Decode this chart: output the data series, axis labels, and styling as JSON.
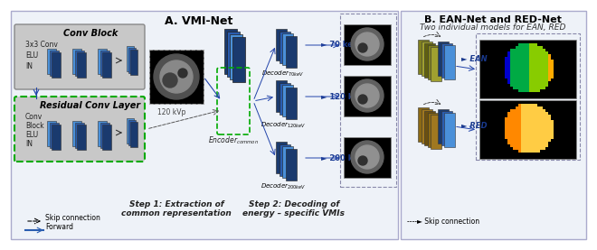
{
  "title_A": "A. VMI-Net",
  "title_B": "B. EAN-Net and RED-Net",
  "subtitle_B": "Two individual models for EAN, RED",
  "conv_block_label": "Conv Block",
  "residual_label": "Residual Conv Layer",
  "conv_block_items": [
    "3x3 Conv",
    "ELU",
    "IN"
  ],
  "residual_items": [
    "Conv",
    "Block",
    "ELU",
    "IN"
  ],
  "encoder_label": "Encoder_common",
  "decoder_labels": [
    "Decoder_70keV",
    "Decoder_120keV",
    "Decoder_200keV"
  ],
  "kev_labels": [
    "► 70 keV",
    "► 120 keV",
    "► 200 keV"
  ],
  "kev_input": "120 kVp",
  "ean_label": "► EAN",
  "red_label": "► RED",
  "legend_skip": "----► Skip connection",
  "legend_forward": "—► Forward",
  "legend_skip_B": "----► Skip connection",
  "step1_label": "Step 1: Extraction of\ncommon representation",
  "step2_label": "Step 2: Decoding of\nenergy – specific VMIs",
  "bg_color": "#f0f4f8",
  "box_gray": "#d0d0d0",
  "box_green_border": "#00aa00",
  "blue_dark": "#1a3a6e",
  "blue_mid": "#2a5db0",
  "blue_light": "#4a90d9",
  "olive": "#808020",
  "brown": "#8B6914",
  "panel_A_bg": "#e8eef8",
  "panel_B_bg": "#e8eef8"
}
